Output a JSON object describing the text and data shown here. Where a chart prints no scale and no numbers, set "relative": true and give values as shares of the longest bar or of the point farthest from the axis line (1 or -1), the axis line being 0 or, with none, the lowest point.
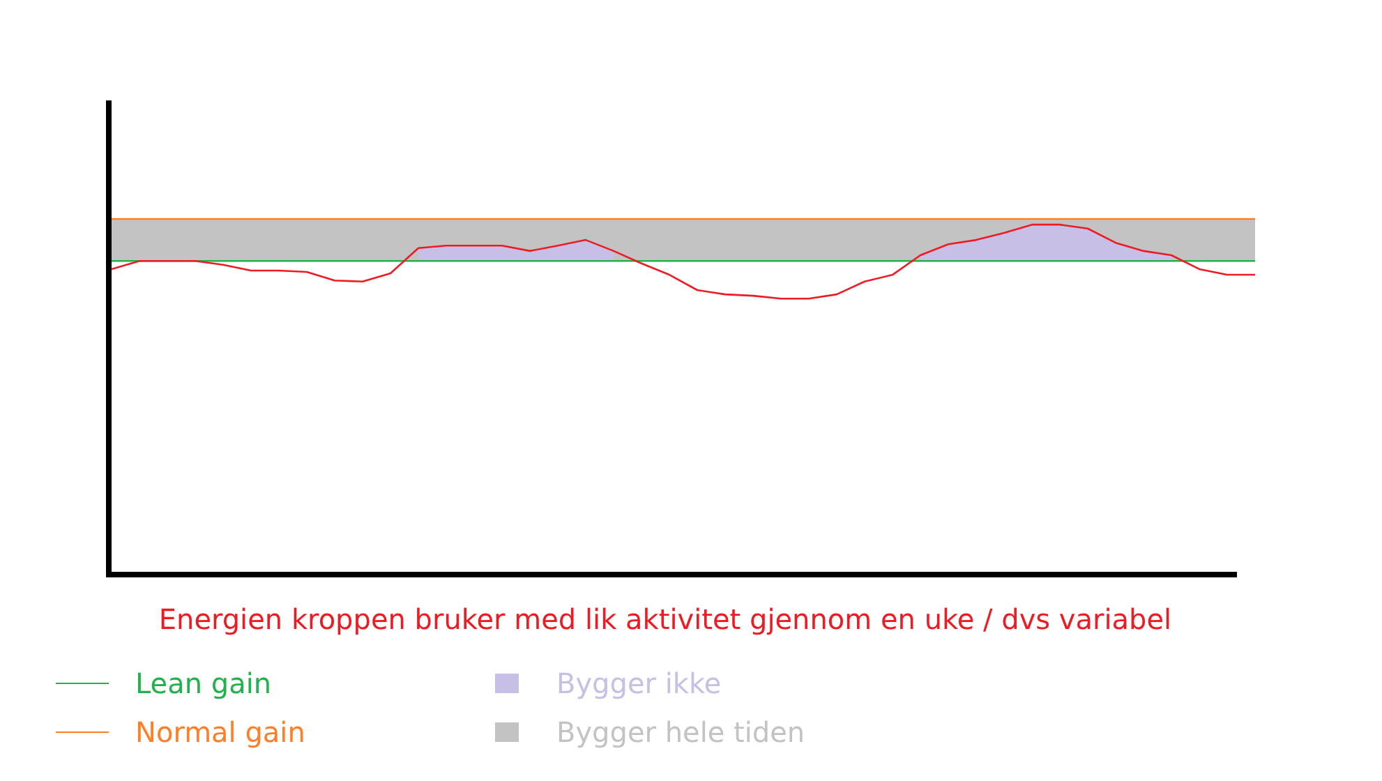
{
  "chart_data": {
    "type": "line",
    "relative": true,
    "xlabel": "Energien kroppen bruker med lik aktivitet gjennom en uke / dvs variabel",
    "categories": [
      null,
      null,
      null,
      null,
      null,
      null,
      null,
      null,
      null,
      null,
      null,
      null,
      null,
      null,
      null,
      null,
      null,
      null,
      null,
      null,
      null,
      null,
      null,
      null,
      null,
      null,
      null,
      null,
      null,
      null,
      null,
      null,
      null,
      null,
      null,
      null,
      null,
      null,
      null,
      null,
      null,
      null
    ],
    "bands": [
      {
        "axis": "y",
        "from": 0.882,
        "to": 1,
        "label": "Bygger hele tiden",
        "color": "#c3c3c3"
      }
    ],
    "series": [
      {
        "type": "area",
        "name": "Bygger ikke",
        "color": "#c8bfe7",
        "values": [
          null,
          null,
          null,
          null,
          null,
          null,
          null,
          null,
          null,
          null,
          null,
          0.918,
          0.925,
          0.925,
          0.925,
          0.91,
          0.925,
          0.941,
          0.91,
          null,
          null,
          null,
          null,
          null,
          null,
          null,
          null,
          null,
          null,
          0.898,
          0.929,
          0.941,
          0.961,
          0.984,
          0.984,
          0.973,
          0.933,
          0.91,
          0.898,
          null,
          null,
          null
        ]
      },
      {
        "name": "Lean gain",
        "color": "#22b14c",
        "values": [
          0.882,
          0.882,
          0.882,
          0.882,
          0.882,
          0.882,
          0.882,
          0.882,
          0.882,
          0.882,
          0.882,
          0.882,
          0.882,
          0.882,
          0.882,
          0.882,
          0.882,
          0.882,
          0.882,
          0.882,
          0.882,
          0.882,
          0.882,
          0.882,
          0.882,
          0.882,
          0.882,
          0.882,
          0.882,
          0.882,
          0.882,
          0.882,
          0.882,
          0.882,
          0.882,
          0.882,
          0.882,
          0.882,
          0.882,
          0.882,
          0.882,
          0.882
        ]
      },
      {
        "name": "Normal gain",
        "color": "#ff7f27",
        "values": [
          1,
          1,
          1,
          1,
          1,
          1,
          1,
          1,
          1,
          1,
          1,
          1,
          1,
          1,
          1,
          1,
          1,
          1,
          1,
          1,
          1,
          1,
          1,
          1,
          1,
          1,
          1,
          1,
          1,
          1,
          1,
          1,
          1,
          1,
          1,
          1,
          1,
          1,
          1,
          1,
          1,
          1
        ]
      },
      {
        "color": "#ed1c24",
        "values": [
          0.859,
          0.882,
          0.882,
          0.882,
          0.871,
          0.855,
          0.855,
          0.851,
          0.827,
          0.824,
          0.847,
          0.918,
          0.925,
          0.925,
          0.925,
          0.91,
          0.925,
          0.941,
          0.91,
          0.875,
          0.843,
          0.8,
          0.788,
          0.784,
          0.776,
          0.776,
          0.788,
          0.824,
          0.843,
          0.898,
          0.929,
          0.941,
          0.961,
          0.984,
          0.984,
          0.973,
          0.933,
          0.91,
          0.898,
          0.859,
          0.843,
          0.843
        ]
      }
    ],
    "legend": "bottom"
  }
}
